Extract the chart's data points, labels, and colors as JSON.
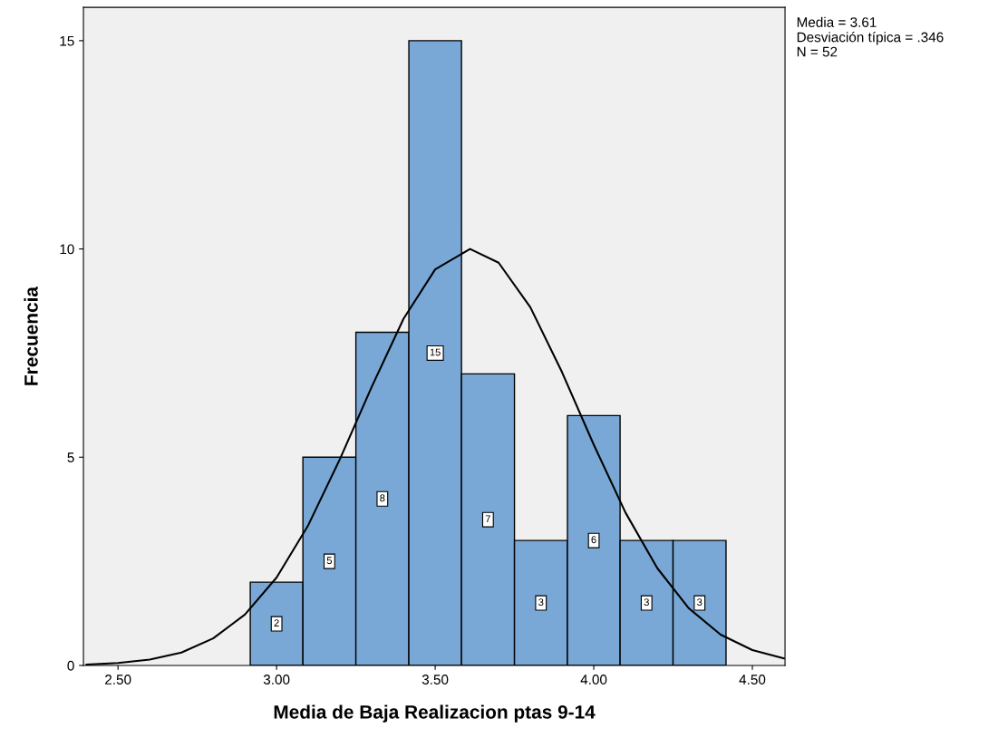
{
  "chart_data": {
    "type": "histogram",
    "xlabel": "Media de Baja Realizacion ptas 9-14",
    "ylabel": "Frecuencia",
    "bins": [
      2.917,
      3.083,
      3.25,
      3.417,
      3.583,
      3.75,
      3.917,
      4.083,
      4.25,
      4.417
    ],
    "series": [
      {
        "color": "#79a8d6",
        "values": [
          2,
          5,
          8,
          15,
          7,
          3,
          6,
          3,
          3
        ],
        "value_labels": [
          "2",
          "5",
          "8",
          "15",
          "7",
          "3",
          "6",
          "3",
          "3"
        ]
      },
      {
        "type": "line",
        "color": "#000000",
        "x": [
          2.4,
          2.5,
          2.6,
          2.7,
          2.8,
          2.9,
          3.0,
          3.1,
          3.2,
          3.3,
          3.4,
          3.5,
          3.61,
          3.7,
          3.8,
          3.9,
          4.0,
          4.1,
          4.2,
          4.3,
          4.4,
          4.5,
          4.6
        ],
        "values": [
          0.02,
          0.06,
          0.14,
          0.31,
          0.65,
          1.22,
          2.11,
          3.37,
          4.96,
          6.69,
          8.32,
          9.51,
          10,
          9.67,
          8.6,
          7.04,
          5.3,
          3.67,
          2.34,
          1.37,
          0.74,
          0.37,
          0.17
        ]
      }
    ],
    "xlim": [
      2.391,
      4.603
    ],
    "ylim": [
      0,
      15.8
    ],
    "xticks": [
      {
        "value": 2.5,
        "label": "2.50"
      },
      {
        "value": 3.0,
        "label": "3.00"
      },
      {
        "value": 3.5,
        "label": "3.50"
      },
      {
        "value": 4.0,
        "label": "4.00"
      },
      {
        "value": 4.5,
        "label": "4.50"
      }
    ],
    "yticks": [
      0,
      5,
      10,
      15
    ],
    "grid": false,
    "annotations": [
      "Media = 3.61",
      "Desviación típica = .346",
      "N = 52"
    ]
  }
}
